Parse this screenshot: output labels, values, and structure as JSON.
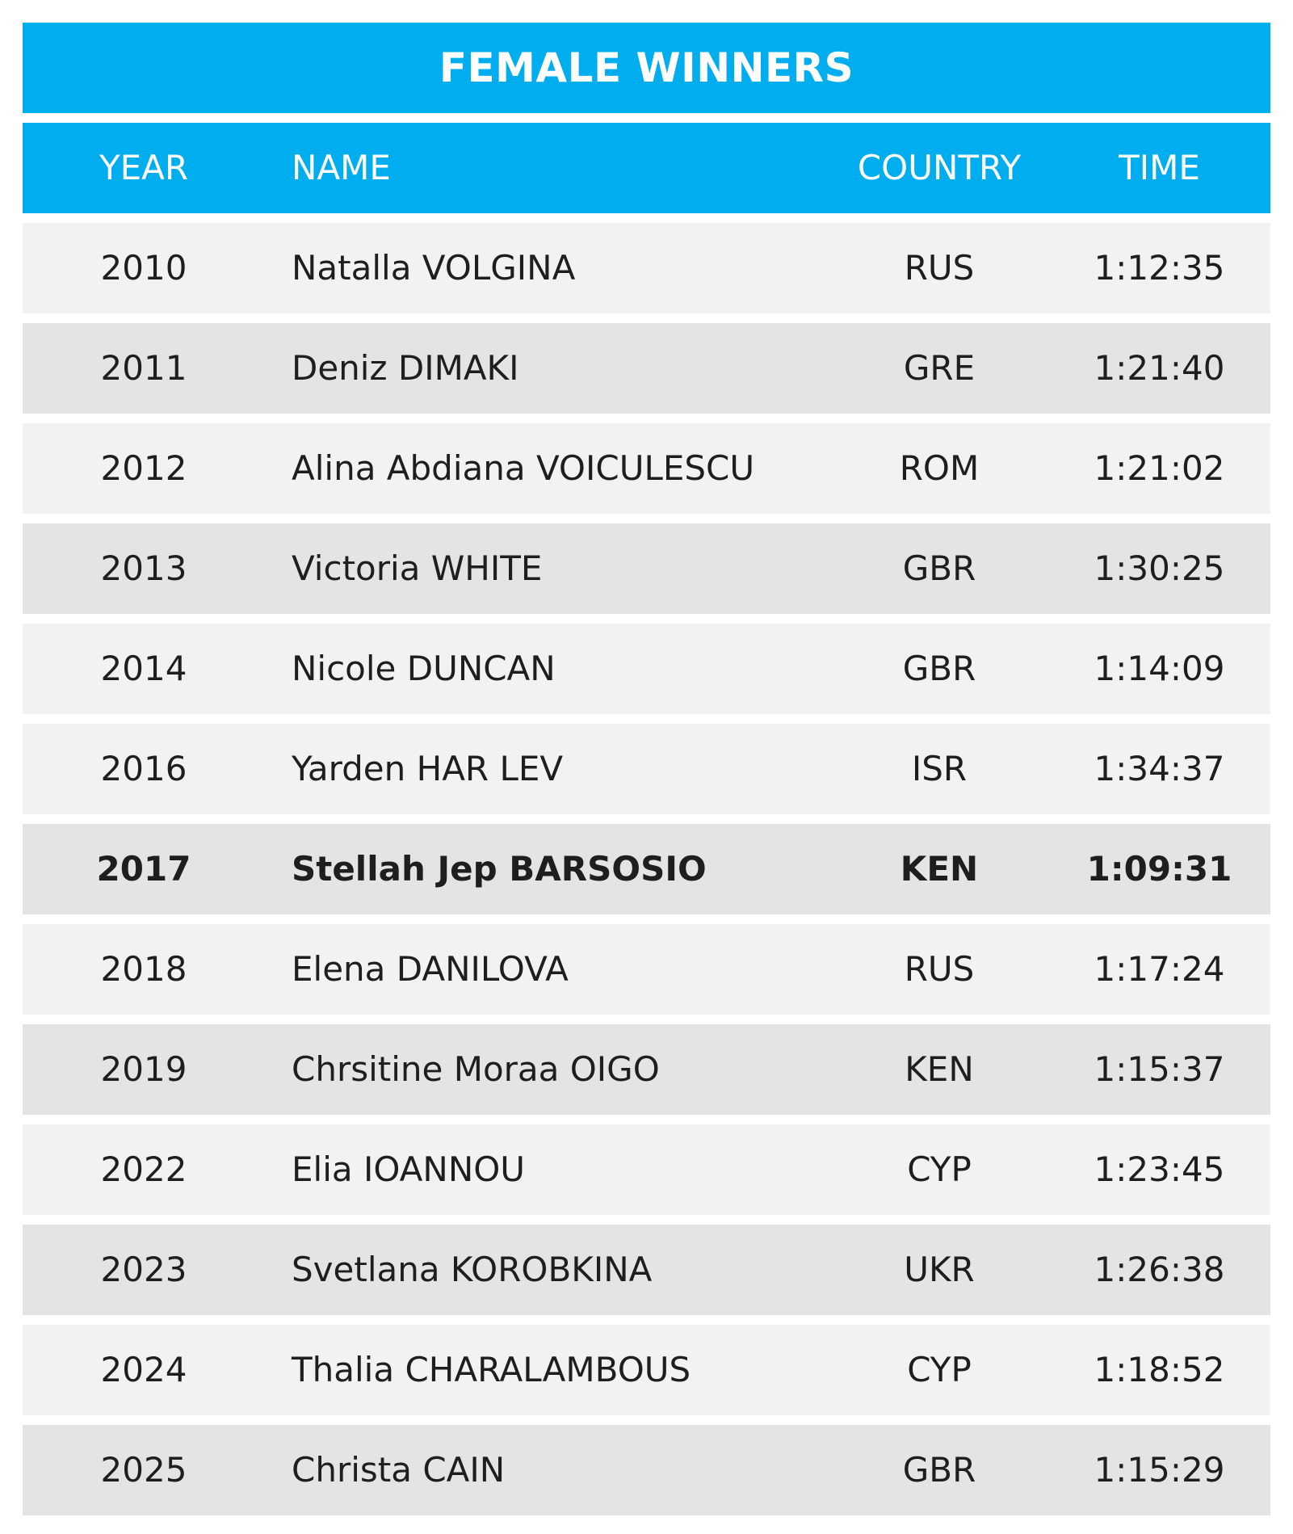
{
  "title": "FEMALE WINNERS",
  "headers": {
    "year": "YEAR",
    "name": "NAME",
    "country": "COUNTRY",
    "time": "TIME"
  },
  "colors": {
    "header_bg": "#00aeef",
    "header_text": "#ffffff",
    "row_light": "#f2f2f2",
    "row_dark": "#e4e4e4",
    "text": "#1e1e1e"
  },
  "highlighted_year": "2017",
  "rows": [
    {
      "year": "2010",
      "name": "Natalla VOLGINA",
      "country": "RUS",
      "time": "1:12:35"
    },
    {
      "year": "2011",
      "name": "Deniz DIMAKI",
      "country": "GRE",
      "time": "1:21:40"
    },
    {
      "year": "2012",
      "name": "Alina Abdiana VOICULESCU",
      "country": "ROM",
      "time": "1:21:02"
    },
    {
      "year": "2013",
      "name": "Victoria WHITE",
      "country": "GBR",
      "time": "1:30:25"
    },
    {
      "year": "2014",
      "name": "Nicole DUNCAN",
      "country": "GBR",
      "time": "1:14:09"
    },
    {
      "year": "2016",
      "name": "Yarden HAR LEV",
      "country": "ISR",
      "time": "1:34:37"
    },
    {
      "year": "2017",
      "name": "Stellah Jep BARSOSIO",
      "country": "KEN",
      "time": "1:09:31"
    },
    {
      "year": "2018",
      "name": "Elena DANILOVA",
      "country": "RUS",
      "time": "1:17:24"
    },
    {
      "year": "2019",
      "name": "Chrsitine Moraa OIGO",
      "country": "KEN",
      "time": "1:15:37"
    },
    {
      "year": "2022",
      "name": "Elia IOANNOU",
      "country": "CYP",
      "time": "1:23:45"
    },
    {
      "year": "2023",
      "name": "Svetlana KOROBKINA",
      "country": "UKR",
      "time": "1:26:38"
    },
    {
      "year": "2024",
      "name": "Thalia CHARALAMBOUS",
      "country": "CYP",
      "time": "1:18:52"
    },
    {
      "year": "2025",
      "name": "Christa CAIN",
      "country": "GBR",
      "time": "1:15:29"
    }
  ]
}
